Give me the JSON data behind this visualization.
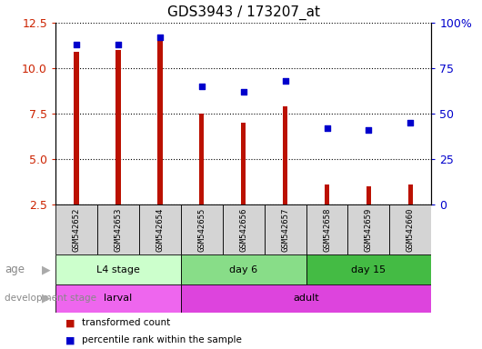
{
  "title": "GDS3943 / 173207_at",
  "samples": [
    "GSM542652",
    "GSM542653",
    "GSM542654",
    "GSM542655",
    "GSM542656",
    "GSM542657",
    "GSM542658",
    "GSM542659",
    "GSM542660"
  ],
  "transformed_count": [
    10.9,
    11.0,
    11.7,
    7.5,
    7.0,
    7.9,
    3.6,
    3.5,
    3.6
  ],
  "percentile_rank": [
    88,
    88,
    92,
    65,
    62,
    68,
    42,
    41,
    45
  ],
  "ylim_left": [
    2.5,
    12.5
  ],
  "ylim_right": [
    0,
    100
  ],
  "yticks_left": [
    2.5,
    5.0,
    7.5,
    10.0,
    12.5
  ],
  "yticks_right": [
    0,
    25,
    50,
    75,
    100
  ],
  "bar_color": "#BB1100",
  "dot_color": "#0000CC",
  "grid_color": "#000000",
  "age_groups": [
    {
      "label": "L4 stage",
      "start": 0,
      "end": 3,
      "color": "#ccffcc"
    },
    {
      "label": "day 6",
      "start": 3,
      "end": 6,
      "color": "#88dd88"
    },
    {
      "label": "day 15",
      "start": 6,
      "end": 9,
      "color": "#44bb44"
    }
  ],
  "dev_groups": [
    {
      "label": "larval",
      "start": 0,
      "end": 3,
      "color": "#ee66ee"
    },
    {
      "label": "adult",
      "start": 3,
      "end": 9,
      "color": "#dd44dd"
    }
  ],
  "legend_items": [
    {
      "label": "transformed count",
      "color": "#BB1100"
    },
    {
      "label": "percentile rank within the sample",
      "color": "#0000CC"
    }
  ],
  "left_tick_color": "#CC2200",
  "right_tick_color": "#0000CC",
  "title_fontsize": 11,
  "tick_fontsize": 9,
  "sample_fontsize": 7,
  "label_fontsize": 9
}
